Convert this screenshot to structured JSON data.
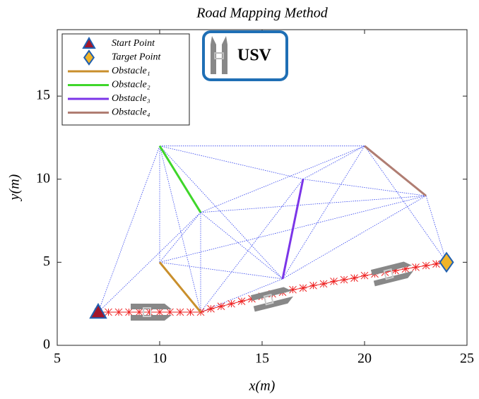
{
  "chart_data": {
    "type": "line",
    "title": "Road Mapping Method",
    "x_label": "x(m)",
    "y_label": "y(m)",
    "xlim": [
      5,
      25
    ],
    "ylim": [
      0,
      19
    ],
    "xticks": [
      5,
      10,
      15,
      20,
      25
    ],
    "yticks": [
      0,
      5,
      10,
      15
    ],
    "annotations": [
      "USV"
    ],
    "series": [
      {
        "color": "#3344ee",
        "style": "dotted",
        "x": [
          7,
          10,
          null,
          7,
          12,
          null,
          10,
          10,
          null,
          10,
          12,
          null,
          10,
          16,
          null,
          10,
          17,
          null,
          10,
          20,
          null,
          10,
          12,
          null,
          10,
          16,
          null,
          12,
          12,
          null,
          12,
          16,
          null,
          12,
          17,
          null,
          12,
          16,
          null,
          12,
          20,
          null,
          12,
          23,
          null,
          16,
          20,
          null,
          16,
          23,
          null,
          17,
          20,
          null,
          17,
          23,
          null,
          20,
          24,
          null,
          23,
          24,
          null,
          10,
          23
        ],
        "y": [
          2,
          12,
          null,
          2,
          8,
          null,
          5,
          12,
          null,
          12,
          2,
          null,
          12,
          4,
          null,
          12,
          10,
          null,
          12,
          12,
          null,
          5,
          8,
          null,
          5,
          4,
          null,
          2,
          8,
          null,
          2,
          4,
          null,
          2,
          10,
          null,
          8,
          4,
          null,
          8,
          12,
          null,
          8,
          9,
          null,
          4,
          12,
          null,
          4,
          9,
          null,
          10,
          12,
          null,
          10,
          9,
          null,
          12,
          5,
          null,
          9,
          5,
          null,
          5,
          9
        ]
      },
      {
        "color": "#ee2222",
        "marker": "asterisk",
        "x": [
          7,
          7.5,
          8,
          8.5,
          9,
          9.5,
          10,
          10.5,
          11,
          11.5,
          12,
          12.5,
          13,
          13.5,
          14,
          14.5,
          15,
          15.5,
          16,
          16.5,
          17,
          17.5,
          18,
          18.5,
          19,
          19.5,
          20,
          20.5,
          21,
          21.5,
          22,
          22.5,
          23,
          23.5,
          24
        ],
        "y": [
          2,
          2,
          2,
          2,
          2,
          2,
          2,
          2,
          2,
          2,
          2,
          2.2,
          2.35,
          2.5,
          2.65,
          2.8,
          2.95,
          3.1,
          3.2,
          3.35,
          3.45,
          3.6,
          3.7,
          3.85,
          3.95,
          4.05,
          4.2,
          4.3,
          4.4,
          4.5,
          4.6,
          4.7,
          4.8,
          4.9,
          5
        ]
      },
      {
        "name": "Start Point",
        "color": "#a3162a",
        "marker": "triangle",
        "x": [
          7
        ],
        "y": [
          2
        ]
      },
      {
        "name": "Target Point",
        "color": "#f0b428",
        "marker": "diamond",
        "x": [
          24
        ],
        "y": [
          5
        ]
      },
      {
        "name": "Obstacle₁",
        "color": "#c98f2c",
        "x": [
          10,
          12
        ],
        "y": [
          5,
          2
        ]
      },
      {
        "name": "Obstacle₂",
        "color": "#3fd62a",
        "x": [
          10,
          12
        ],
        "y": [
          12,
          8
        ]
      },
      {
        "name": "Obstacle₃",
        "color": "#7b35e8",
        "x": [
          16,
          17
        ],
        "y": [
          4,
          10
        ]
      },
      {
        "name": "Obstacle₄",
        "color": "#b07d72",
        "x": [
          20,
          23
        ],
        "y": [
          12,
          9
        ]
      }
    ]
  }
}
